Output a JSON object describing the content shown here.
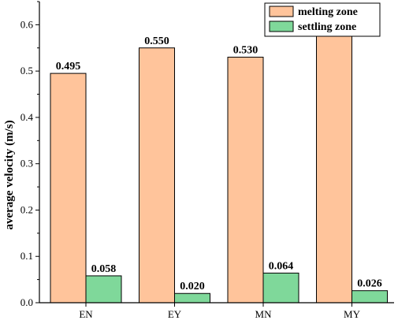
{
  "chart_data": {
    "type": "bar",
    "categories": [
      "EN",
      "EY",
      "MN",
      "MY"
    ],
    "series": [
      {
        "name": "melting zone",
        "values": [
          0.495,
          0.55,
          0.53,
          0.578
        ],
        "value_labels": [
          "0.495",
          "0.550",
          "0.530",
          "0.578"
        ],
        "color": "#FFC49B"
      },
      {
        "name": "settling zone",
        "values": [
          0.058,
          0.02,
          0.064,
          0.026
        ],
        "value_labels": [
          "0.058",
          "0.020",
          "0.064",
          "0.026"
        ],
        "color": "#7FD89A"
      }
    ],
    "ylabel": "average velocity (m/s)",
    "ylim": [
      0,
      0.65
    ],
    "yticks": [
      0.0,
      0.1,
      0.2,
      0.3,
      0.4,
      0.5,
      0.6
    ],
    "ytick_labels": [
      "0.0",
      "0.1",
      "0.2",
      "0.3",
      "0.4",
      "0.5",
      "0.6"
    ],
    "legend_position": "top-right",
    "grid": false
  }
}
